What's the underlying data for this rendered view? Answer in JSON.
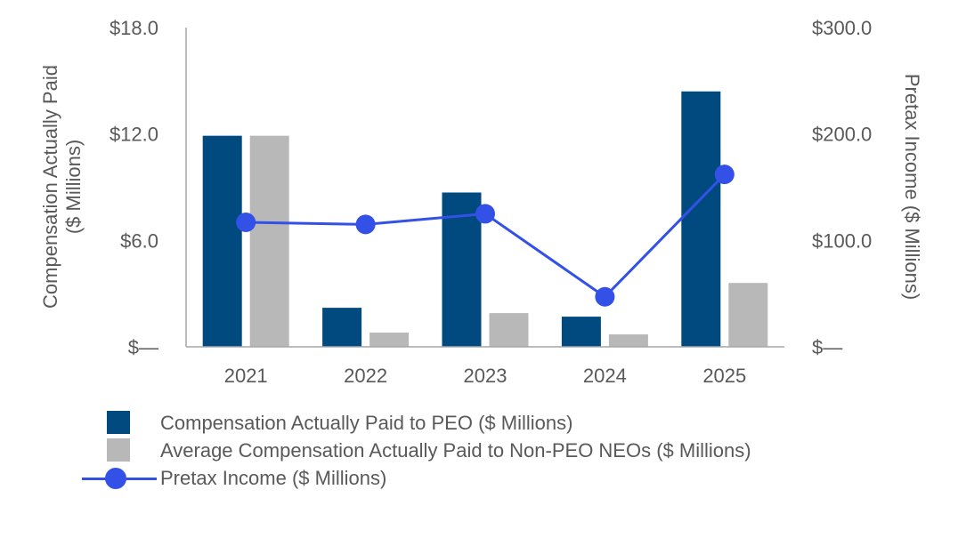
{
  "colors": {
    "peo_bar": "#004A80",
    "neo_bar": "#B8B8B8",
    "income_line": "#3351E6",
    "axis": "#A6A6A6",
    "text": "#595959"
  },
  "chart_data": {
    "type": "bar",
    "categories": [
      "2021",
      "2022",
      "2023",
      "2024",
      "2025"
    ],
    "series": [
      {
        "name": "Compensation Actually Paid to PEO ($ Millions)",
        "kind": "bar",
        "axis": "left",
        "values": [
          11.9,
          2.2,
          8.7,
          1.7,
          14.4
        ]
      },
      {
        "name": "Average Compensation Actually Paid to Non-PEO NEOs ($ Millions)",
        "kind": "bar",
        "axis": "left",
        "values": [
          11.9,
          0.8,
          1.9,
          0.7,
          3.6
        ]
      },
      {
        "name": "Pretax Income ($ Millions)",
        "kind": "line",
        "axis": "right",
        "values": [
          117,
          115,
          125,
          47,
          162
        ]
      }
    ],
    "y_left": {
      "label_line1": "Compensation Actually Paid",
      "label_line2": "($ Millions)",
      "ylim": [
        0,
        18
      ],
      "ticks": [
        0,
        6,
        12,
        18
      ],
      "tick_labels": [
        "$—",
        "$6.0",
        "$12.0",
        "$18.0"
      ]
    },
    "y_right": {
      "label": "Pretax Income ($ Millions)",
      "ylim": [
        0,
        300
      ],
      "ticks": [
        0,
        100,
        200,
        300
      ],
      "tick_labels": [
        "$—",
        "$100.0",
        "$200.0",
        "$300.0"
      ]
    },
    "legend_position": "bottom-left"
  },
  "legend": {
    "items": [
      "Compensation Actually Paid to PEO ($ Millions)",
      "Average Compensation Actually Paid to Non-PEO NEOs ($ Millions)",
      "Pretax Income ($ Millions)"
    ]
  }
}
